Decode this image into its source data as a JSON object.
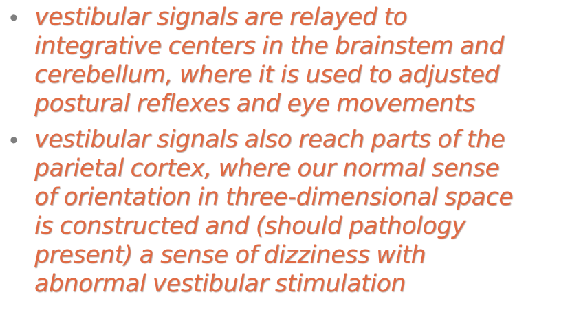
{
  "slide": {
    "bullets": [
      {
        "lines": [
          "vestibular signals are relayed to",
          "integrative centers in the brainstem and",
          "cerebellum, where it is used to adjusted",
          "postural reflexes and eye movements"
        ]
      },
      {
        "lines": [
          "vestibular signals also reach parts of the",
          "parietal cortex, where our normal sense",
          "of orientation in three-dimensional space",
          "is constructed and (should pathology",
          "present) a sense of dizziness with",
          "abnormal vestibular stimulation"
        ]
      }
    ],
    "bullet_glyph": "•",
    "colors": {
      "text": "#e06a43",
      "bullet": "#7f7f7f",
      "background": "#ffffff"
    }
  }
}
